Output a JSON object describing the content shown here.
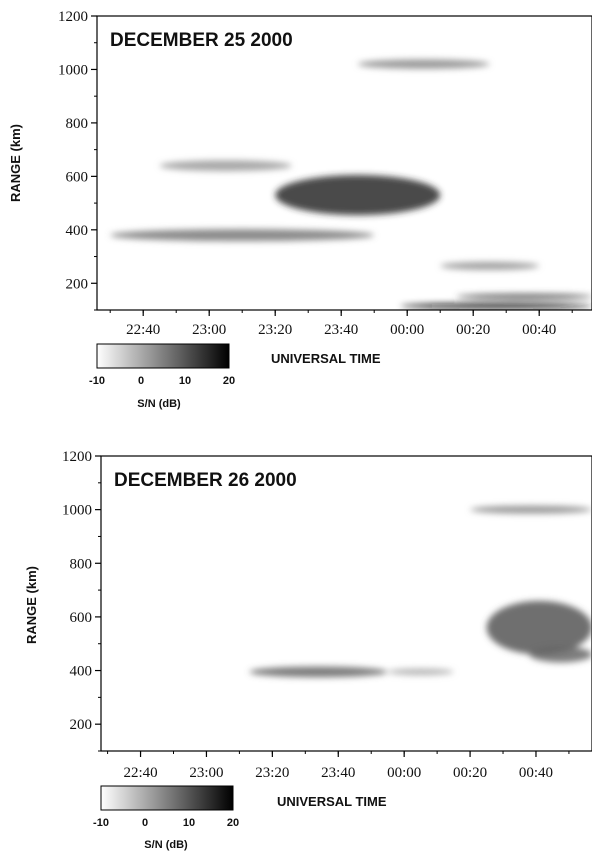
{
  "chart_data": [
    {
      "type": "heatmap",
      "title": "DECEMBER 25 2000",
      "xlabel": "UNIVERSAL TIME",
      "ylabel": "RANGE (km)",
      "x_ticks": [
        "22:40",
        "23:00",
        "23:20",
        "23:40",
        "00:00",
        "00:20",
        "00:40"
      ],
      "y_ticks": [
        200,
        400,
        600,
        800,
        1000,
        1200
      ],
      "ylim": [
        100,
        1200
      ],
      "xlim": [
        "22:26",
        "00:56"
      ],
      "colorbar": {
        "label": "S/N (dB)",
        "ticks": [
          -10,
          0,
          10,
          20
        ],
        "range": [
          -10,
          20
        ]
      },
      "echoes": [
        {
          "t_start": "22:30",
          "t_end": "23:50",
          "range_km": 380,
          "thickness_km": 45,
          "snr_db": 6
        },
        {
          "t_start": "22:45",
          "t_end": "23:25",
          "range_km": 640,
          "thickness_km": 40,
          "snr_db": 2
        },
        {
          "t_start": "23:20",
          "t_end": "00:10",
          "range_km": 530,
          "thickness_km": 150,
          "snr_db": 15
        },
        {
          "t_start": "23:45",
          "t_end": "00:25",
          "range_km": 1020,
          "thickness_km": 35,
          "snr_db": 4
        },
        {
          "t_start": "00:10",
          "t_end": "00:40",
          "range_km": 265,
          "thickness_km": 30,
          "snr_db": 3
        },
        {
          "t_start": "23:58",
          "t_end": "00:56",
          "range_km": 115,
          "thickness_km": 20,
          "snr_db": 18
        },
        {
          "t_start": "00:15",
          "t_end": "00:56",
          "range_km": 150,
          "thickness_km": 20,
          "snr_db": 10
        }
      ]
    },
    {
      "type": "heatmap",
      "title": "DECEMBER 26 2000",
      "xlabel": "UNIVERSAL TIME",
      "ylabel": "RANGE (km)",
      "x_ticks": [
        "22:40",
        "23:00",
        "23:20",
        "23:40",
        "00:00",
        "00:20",
        "00:40"
      ],
      "y_ticks": [
        200,
        400,
        600,
        800,
        1000,
        1200
      ],
      "ylim": [
        100,
        1200
      ],
      "xlim": [
        "22:28",
        "00:57"
      ],
      "colorbar": {
        "label": "S/N (dB)",
        "ticks": [
          -10,
          0,
          10,
          20
        ],
        "range": [
          -10,
          20
        ]
      },
      "echoes": [
        {
          "t_start": "23:13",
          "t_end": "23:55",
          "range_km": 395,
          "thickness_km": 40,
          "snr_db": 8
        },
        {
          "t_start": "23:55",
          "t_end": "00:15",
          "range_km": 395,
          "thickness_km": 25,
          "snr_db": 0
        },
        {
          "t_start": "00:20",
          "t_end": "00:57",
          "range_km": 1000,
          "thickness_km": 30,
          "snr_db": 4
        },
        {
          "t_start": "00:25",
          "t_end": "00:57",
          "range_km": 560,
          "thickness_km": 200,
          "snr_db": 10
        },
        {
          "t_start": "00:38",
          "t_end": "00:57",
          "range_km": 460,
          "thickness_km": 60,
          "snr_db": 8
        }
      ]
    }
  ]
}
